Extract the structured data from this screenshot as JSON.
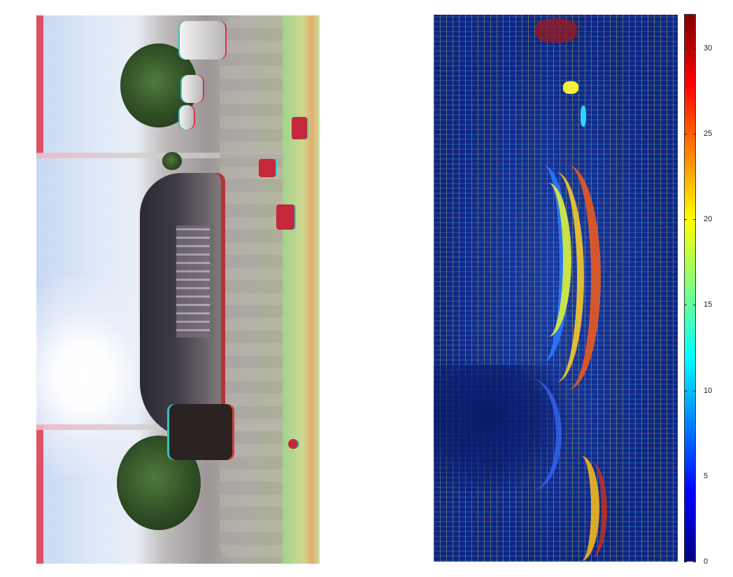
{
  "left_panel": {
    "icon": "anaglyph-panorama-image"
  },
  "right_panel": {
    "icon": "disparity-heatmap-image",
    "colormap": [
      "#00007f",
      "#0000ff",
      "#0080ff",
      "#00ffff",
      "#80ff80",
      "#ffff00",
      "#ff8000",
      "#ff0000",
      "#800000"
    ]
  },
  "colorbar": {
    "min": 0,
    "max": 32,
    "ticks": [
      "0",
      "5",
      "10",
      "15",
      "20",
      "25",
      "30"
    ]
  }
}
